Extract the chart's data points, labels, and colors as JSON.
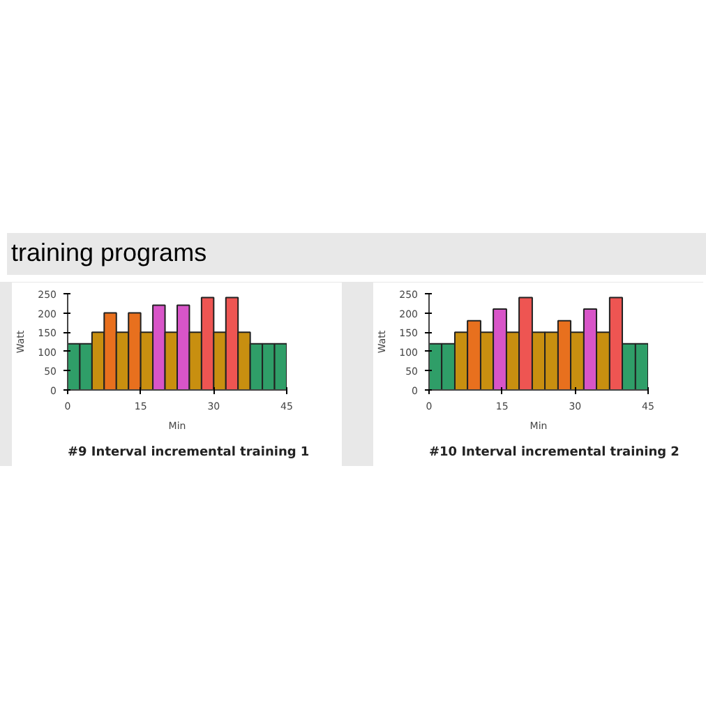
{
  "chart_data": [
    {
      "type": "histogram",
      "title": "#9 Interval incremental training 1",
      "annotations": [
        "training programs"
      ],
      "xlabel": "Min",
      "ylabel": "Watt",
      "bins": [
        0,
        2.5,
        5,
        7.5,
        10,
        12.5,
        15,
        17.5,
        20,
        22.5,
        25,
        27.5,
        30,
        32.5,
        35,
        37.5,
        40,
        42.5,
        45
      ],
      "values": [
        120,
        120,
        150,
        200,
        150,
        200,
        150,
        220,
        150,
        220,
        150,
        240,
        150,
        240,
        150,
        120,
        120,
        120
      ],
      "colors": [
        "#2f9e68",
        "#2f9e68",
        "#c88f10",
        "#e8701e",
        "#c88f10",
        "#e8701e",
        "#c88f10",
        "#d855c8",
        "#c88f10",
        "#d855c8",
        "#c88f10",
        "#ee5552",
        "#c88f10",
        "#ee5552",
        "#c88f10",
        "#2f9e68",
        "#2f9e68",
        "#2f9e68"
      ],
      "xlim": [
        0,
        45
      ],
      "ylim": [
        0,
        250
      ],
      "xticks": [
        0,
        15,
        30,
        45
      ],
      "yticks": [
        0,
        50,
        100,
        150,
        200,
        250
      ],
      "grid": false
    },
    {
      "type": "histogram",
      "title": "#10 Interval incremental training 2",
      "xlabel": "Min",
      "ylabel": "Watt",
      "bins": [
        0,
        2.6,
        5.3,
        7.9,
        10.6,
        13.2,
        15.9,
        18.5,
        21.2,
        23.8,
        26.5,
        29.1,
        31.8,
        34.4,
        37.1,
        39.7,
        42.4,
        45
      ],
      "values": [
        120,
        120,
        150,
        180,
        150,
        210,
        150,
        240,
        150,
        150,
        180,
        150,
        210,
        150,
        240,
        120,
        120
      ],
      "colors": [
        "#2f9e68",
        "#2f9e68",
        "#c88f10",
        "#e8701e",
        "#c88f10",
        "#d855c8",
        "#c88f10",
        "#ee5552",
        "#c88f10",
        "#c88f10",
        "#e8701e",
        "#c88f10",
        "#d855c8",
        "#c88f10",
        "#ee5552",
        "#2f9e68",
        "#2f9e68"
      ],
      "xlim": [
        0,
        45
      ],
      "ylim": [
        0,
        250
      ],
      "xticks": [
        0,
        15,
        30,
        45
      ],
      "yticks": [
        0,
        50,
        100,
        150,
        200,
        250
      ],
      "grid": false
    }
  ]
}
